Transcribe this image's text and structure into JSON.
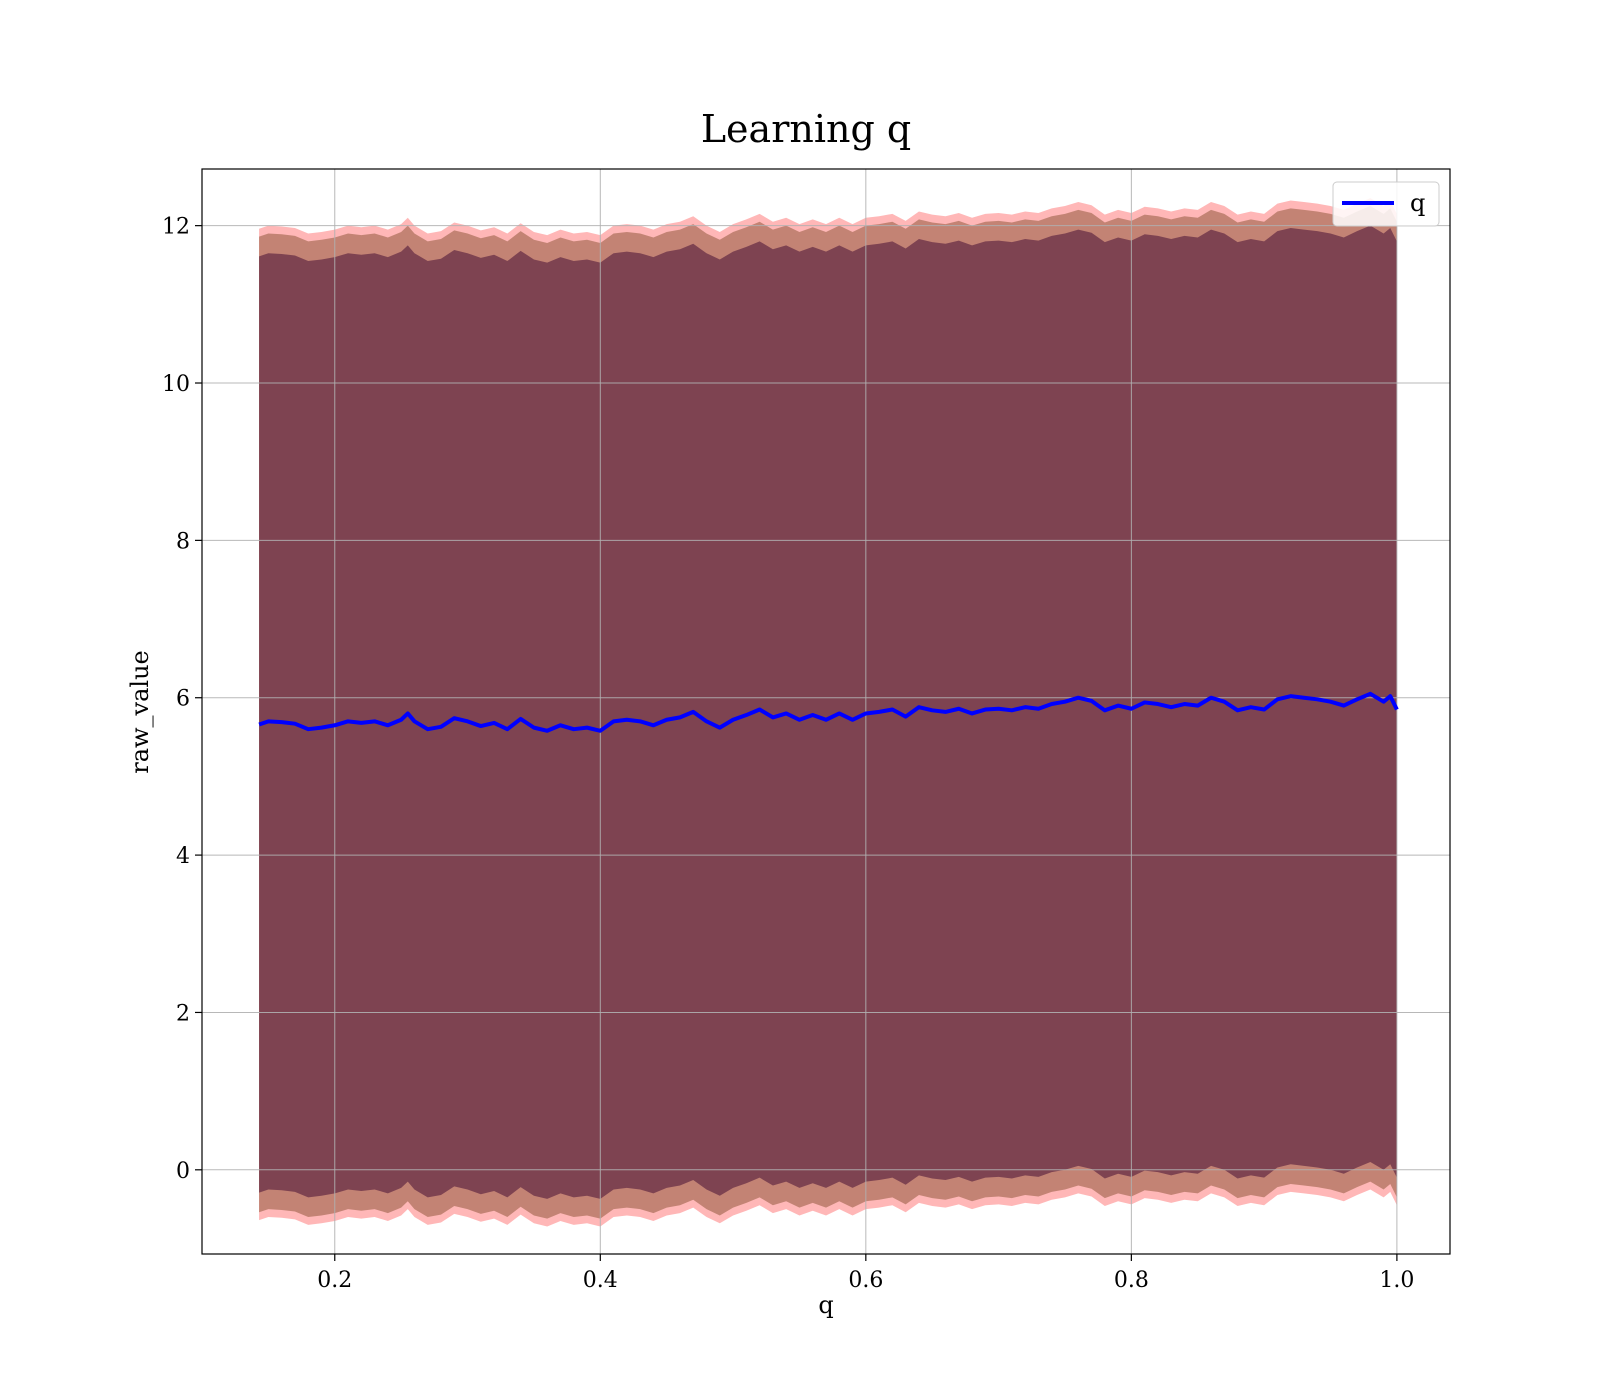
{
  "chart_data": {
    "type": "line",
    "title": "Learning q",
    "xlabel": "q",
    "ylabel": "raw_value",
    "xlim": [
      0.1,
      1.04
    ],
    "ylim": [
      -1.07,
      12.72
    ],
    "xticks": [
      0.2,
      0.4,
      0.6,
      0.8,
      1.0
    ],
    "xtick_labels": [
      "0.2",
      "0.4",
      "0.6",
      "0.8",
      "1.0"
    ],
    "yticks": [
      0,
      2,
      4,
      6,
      8,
      10,
      12
    ],
    "ytick_labels": [
      "0",
      "2",
      "4",
      "6",
      "8",
      "10",
      "12"
    ],
    "grid": true,
    "legend": {
      "placement": "top-right",
      "entries": [
        {
          "label": "q",
          "color": "#0000ff"
        }
      ]
    },
    "series": [
      {
        "name": "q",
        "color": "#0000ff",
        "x": [
          0.143,
          0.15,
          0.16,
          0.17,
          0.18,
          0.19,
          0.2,
          0.21,
          0.22,
          0.23,
          0.24,
          0.25,
          0.255,
          0.26,
          0.27,
          0.28,
          0.29,
          0.3,
          0.31,
          0.32,
          0.33,
          0.34,
          0.35,
          0.36,
          0.37,
          0.38,
          0.39,
          0.4,
          0.41,
          0.42,
          0.43,
          0.44,
          0.45,
          0.46,
          0.47,
          0.48,
          0.49,
          0.5,
          0.51,
          0.52,
          0.53,
          0.54,
          0.55,
          0.56,
          0.57,
          0.58,
          0.59,
          0.6,
          0.61,
          0.62,
          0.63,
          0.64,
          0.65,
          0.66,
          0.67,
          0.68,
          0.69,
          0.7,
          0.71,
          0.72,
          0.73,
          0.74,
          0.75,
          0.76,
          0.77,
          0.78,
          0.79,
          0.8,
          0.81,
          0.82,
          0.83,
          0.84,
          0.85,
          0.86,
          0.87,
          0.88,
          0.89,
          0.9,
          0.91,
          0.92,
          0.93,
          0.94,
          0.95,
          0.96,
          0.97,
          0.98,
          0.99,
          0.995,
          1.0
        ],
        "values": [
          5.66,
          5.7,
          5.69,
          5.67,
          5.6,
          5.62,
          5.65,
          5.7,
          5.68,
          5.7,
          5.65,
          5.72,
          5.8,
          5.7,
          5.6,
          5.63,
          5.74,
          5.7,
          5.64,
          5.68,
          5.6,
          5.73,
          5.62,
          5.58,
          5.65,
          5.6,
          5.62,
          5.58,
          5.7,
          5.72,
          5.7,
          5.65,
          5.72,
          5.75,
          5.82,
          5.7,
          5.62,
          5.72,
          5.78,
          5.85,
          5.75,
          5.8,
          5.72,
          5.78,
          5.72,
          5.8,
          5.72,
          5.8,
          5.82,
          5.85,
          5.76,
          5.88,
          5.84,
          5.82,
          5.86,
          5.8,
          5.85,
          5.86,
          5.84,
          5.88,
          5.86,
          5.92,
          5.95,
          6.0,
          5.96,
          5.84,
          5.9,
          5.86,
          5.94,
          5.92,
          5.88,
          5.92,
          5.9,
          6.0,
          5.95,
          5.84,
          5.88,
          5.85,
          5.98,
          6.02,
          6.0,
          5.98,
          5.95,
          5.9,
          5.98,
          6.05,
          5.95,
          6.02,
          5.85
        ],
        "band_inner": {
          "label_printed": false,
          "color": "#7a3f4f",
          "offset": 5.95
        },
        "band_mid": {
          "label_printed": false,
          "color": "#b97a68",
          "offset": 6.2
        },
        "band_outer": {
          "label_printed": false,
          "color": "#ffaaaa",
          "offset": 6.3
        }
      }
    ]
  }
}
